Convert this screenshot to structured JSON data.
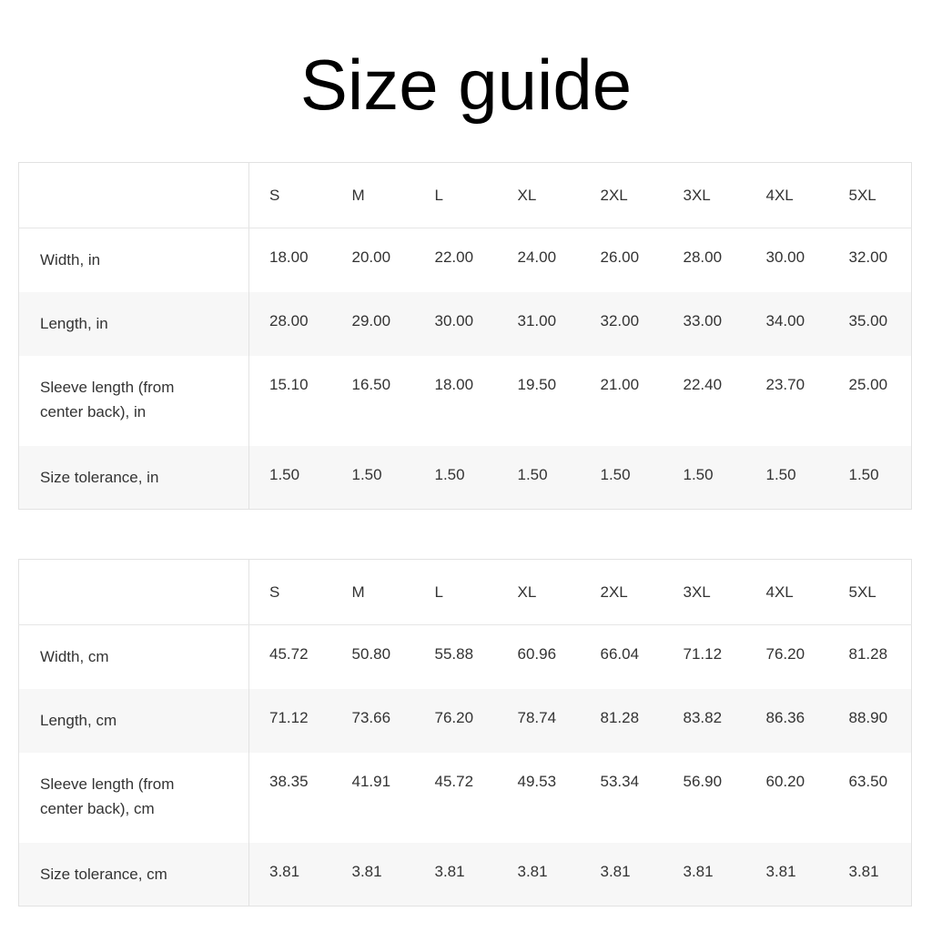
{
  "title": "Size guide",
  "sizes": [
    "S",
    "M",
    "L",
    "XL",
    "2XL",
    "3XL",
    "4XL",
    "5XL"
  ],
  "tables": [
    {
      "rows": [
        {
          "label": "Width, in",
          "values": [
            "18.00",
            "20.00",
            "22.00",
            "24.00",
            "26.00",
            "28.00",
            "30.00",
            "32.00"
          ]
        },
        {
          "label": "Length, in",
          "values": [
            "28.00",
            "29.00",
            "30.00",
            "31.00",
            "32.00",
            "33.00",
            "34.00",
            "35.00"
          ]
        },
        {
          "label": "Sleeve length (from center back), in",
          "values": [
            "15.10",
            "16.50",
            "18.00",
            "19.50",
            "21.00",
            "22.40",
            "23.70",
            "25.00"
          ]
        },
        {
          "label": "Size tolerance, in",
          "values": [
            "1.50",
            "1.50",
            "1.50",
            "1.50",
            "1.50",
            "1.50",
            "1.50",
            "1.50"
          ]
        }
      ]
    },
    {
      "rows": [
        {
          "label": "Width, cm",
          "values": [
            "45.72",
            "50.80",
            "55.88",
            "60.96",
            "66.04",
            "71.12",
            "76.20",
            "81.28"
          ]
        },
        {
          "label": "Length, cm",
          "values": [
            "71.12",
            "73.66",
            "76.20",
            "78.74",
            "81.28",
            "83.82",
            "86.36",
            "88.90"
          ]
        },
        {
          "label": "Sleeve length (from center back), cm",
          "values": [
            "38.35",
            "41.91",
            "45.72",
            "49.53",
            "53.34",
            "56.90",
            "60.20",
            "63.50"
          ]
        },
        {
          "label": "Size tolerance, cm",
          "values": [
            "3.81",
            "3.81",
            "3.81",
            "3.81",
            "3.81",
            "3.81",
            "3.81",
            "3.81"
          ]
        }
      ]
    }
  ]
}
